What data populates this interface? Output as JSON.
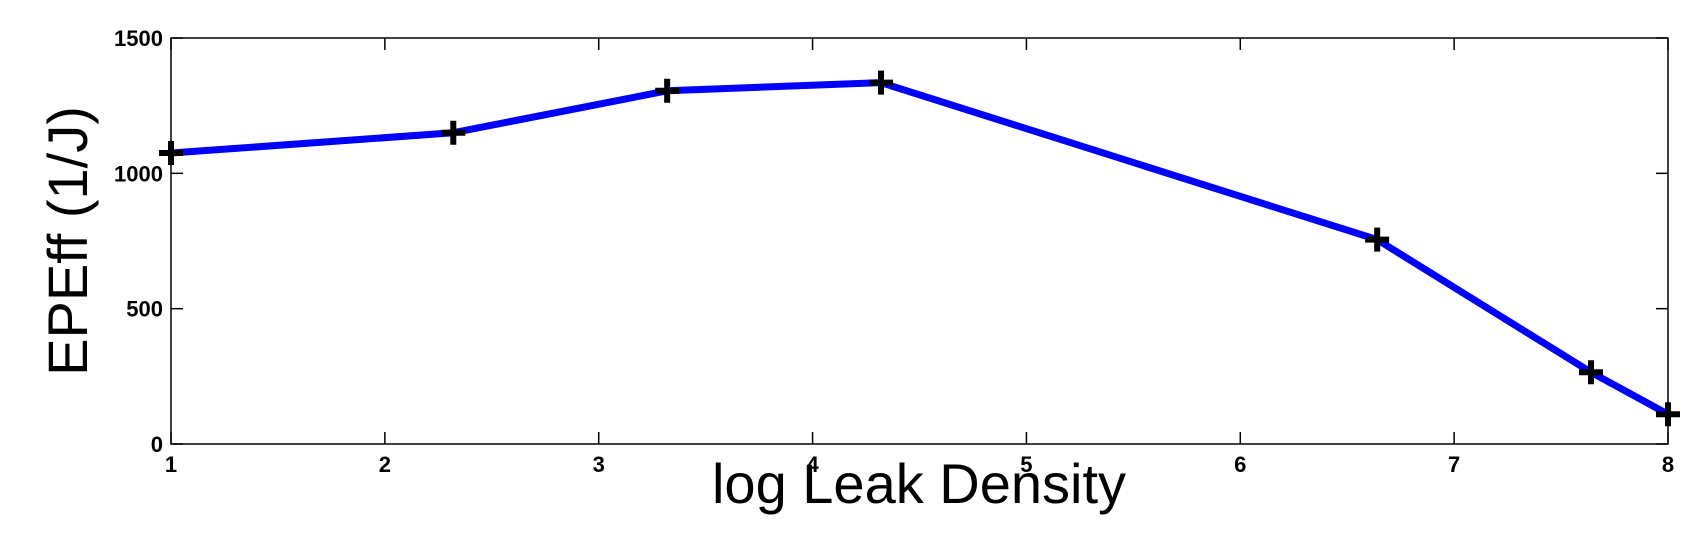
{
  "chart_data": {
    "type": "line",
    "x_label": "log Leak Density",
    "y_label": "EPEff (1/J)",
    "x": [
      1,
      2.32,
      3.32,
      4.32,
      6.64,
      7.64,
      8
    ],
    "values": [
      1075,
      1150,
      1305,
      1335,
      755,
      265,
      110
    ],
    "color": "#0000ff",
    "marker_color": "#000000",
    "xlim": [
      1,
      8
    ],
    "xticks": [
      1,
      2,
      3,
      4,
      5,
      6,
      7,
      8
    ],
    "ylim": [
      0,
      1500
    ],
    "yticks": [
      0,
      500,
      1000,
      1500
    ],
    "grid": false
  }
}
